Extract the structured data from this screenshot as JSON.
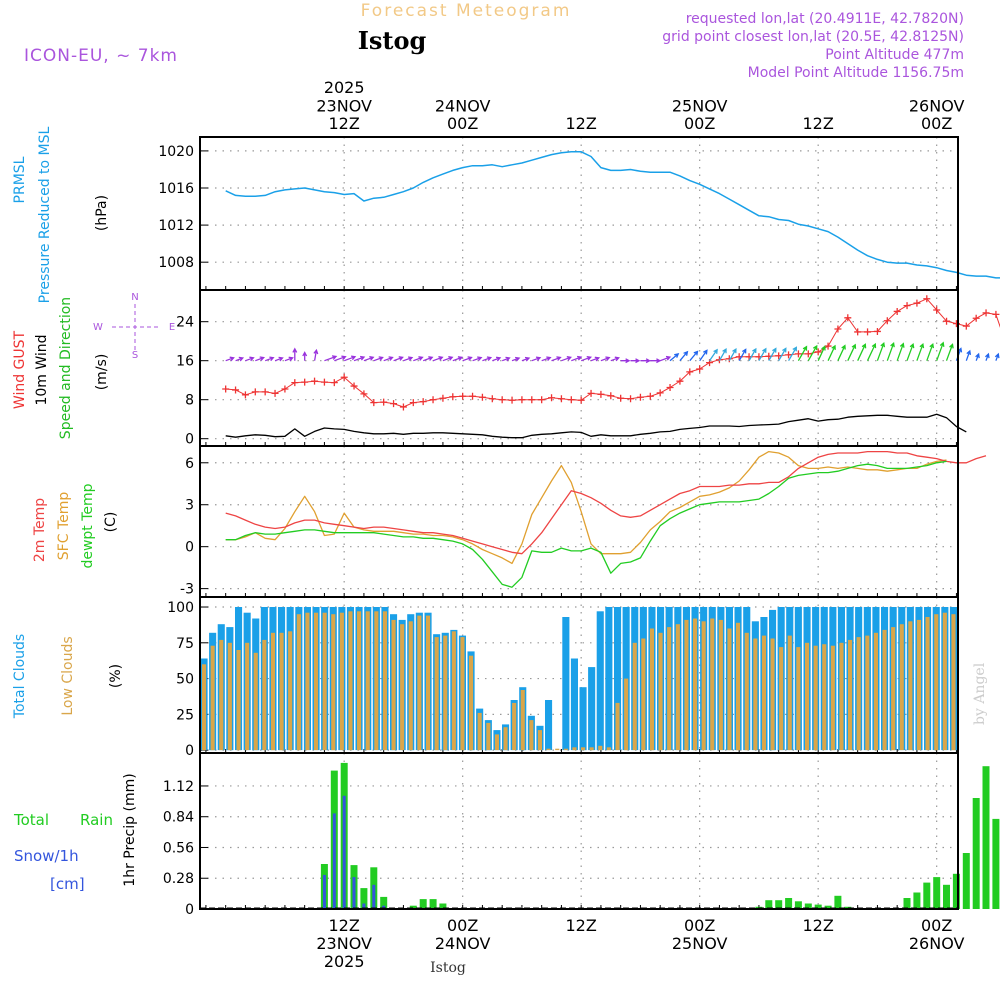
{
  "header": {
    "product": "Forecast Meteogram",
    "location": "Istog",
    "model": "ICON-EU, ~ 7km",
    "requested": "requested lon,lat (20.4911E, 42.7820N)",
    "gridpoint": "grid point closest lon,lat (20.5E, 42.8125N)",
    "altitude": "Point Altitude 477m",
    "model_altitude": "Model Point Altitude 1156.75m",
    "footer": "Istog",
    "watermark": "by Angel"
  },
  "colors": {
    "pressure": "#1aa0e8",
    "gust": "#ee3333",
    "wind": "#000000",
    "dir": "#22bb22",
    "temp2m": "#ee4444",
    "sfc": "#e0a030",
    "dewpt": "#22cc22",
    "cloudTotal": "#1aa0e8",
    "cloudLow": "#d9a64a",
    "rain": "#22cc22",
    "snow": "#3355dd",
    "purple": "#aa55dd",
    "gold": "#f2c987"
  },
  "time_axis": {
    "top_year": "2025",
    "ticks": [
      {
        "hour": 12,
        "lines": [
          "23NOV",
          "12Z"
        ],
        "bottom": [
          "12Z",
          "23NOV",
          "2025"
        ]
      },
      {
        "hour": 24,
        "lines": [
          "24NOV",
          "00Z"
        ],
        "bottom": [
          "00Z",
          "24NOV"
        ]
      },
      {
        "hour": 36,
        "lines": [
          "12Z"
        ],
        "bottom": [
          "12Z"
        ]
      },
      {
        "hour": 48,
        "lines": [
          "25NOV",
          "00Z"
        ],
        "bottom": [
          "00Z",
          "25NOV"
        ]
      },
      {
        "hour": 60,
        "lines": [
          "12Z"
        ],
        "bottom": [
          "12Z"
        ]
      },
      {
        "hour": 72,
        "lines": [
          "26NOV",
          "00Z"
        ],
        "bottom": [
          "00Z",
          "26NOV"
        ]
      }
    ]
  },
  "chart_data": [
    {
      "type": "line",
      "name": "pressure",
      "labels": {
        "l1": "PRMSL",
        "l2": "Pressure Reduced to MSL",
        "unit": "(hPa)"
      },
      "ylim": [
        1005,
        1021.5
      ],
      "yticks": [
        1008,
        1012,
        1016,
        1020
      ],
      "series": [
        {
          "name": "PRMSL",
          "values": [
            1015.7,
            1015.2,
            1015.1,
            1015.1,
            1015.2,
            1015.6,
            1015.8,
            1015.9,
            1016.0,
            1015.8,
            1015.6,
            1015.5,
            1015.3,
            1015.4,
            1014.6,
            1014.9,
            1015.0,
            1015.3,
            1015.6,
            1016.0,
            1016.6,
            1017.1,
            1017.5,
            1017.9,
            1018.2,
            1018.4,
            1018.4,
            1018.5,
            1018.3,
            1018.5,
            1018.7,
            1019.0,
            1019.3,
            1019.6,
            1019.8,
            1019.9,
            1019.9,
            1019.4,
            1018.2,
            1017.9,
            1017.9,
            1018.0,
            1017.8,
            1017.7,
            1017.7,
            1017.7,
            1017.3,
            1016.8,
            1016.4,
            1015.9,
            1015.4,
            1014.8,
            1014.2,
            1013.6,
            1013.0,
            1012.9,
            1012.6,
            1012.5,
            1012.1,
            1011.9,
            1011.6,
            1011.3,
            1010.7,
            1010.0,
            1009.3,
            1008.7,
            1008.3,
            1008.0,
            1007.9,
            1007.9,
            1007.7,
            1007.6,
            1007.4,
            1007.1,
            1006.9,
            1006.6,
            1006.5,
            1006.5,
            1006.3,
            1006.3,
            1006.5,
            1007.1
          ]
        }
      ]
    },
    {
      "type": "line",
      "name": "wind",
      "labels": {
        "l1": "Wind GUST",
        "l2": "10m Wind",
        "l3": "Speed and Direction",
        "unit": "(m/s)",
        "compass": {
          "n": "N",
          "s": "S",
          "w": "W",
          "e": "E"
        }
      },
      "ylim": [
        -1.5,
        30.5
      ],
      "yticks": [
        0,
        8,
        16,
        24
      ],
      "series": [
        {
          "name": "Wind GUST",
          "values": [
            10.2,
            10.0,
            9.0,
            9.6,
            9.6,
            9.3,
            10.2,
            11.5,
            11.6,
            11.8,
            11.6,
            11.5,
            12.6,
            10.8,
            9.2,
            7.4,
            7.5,
            7.2,
            6.5,
            7.4,
            7.6,
            8.0,
            8.3,
            8.6,
            8.7,
            8.7,
            8.5,
            8.2,
            8.0,
            7.9,
            8.0,
            8.0,
            8.0,
            8.4,
            8.2,
            8.0,
            7.9,
            9.3,
            9.1,
            8.8,
            8.3,
            8.2,
            8.5,
            8.7,
            9.4,
            10.5,
            11.8,
            13.7,
            14.3,
            15.6,
            16.2,
            16.4,
            16.8,
            16.8,
            16.8,
            16.9,
            17.0,
            17.2,
            17.4,
            17.4,
            17.8,
            19.0,
            22.5,
            24.8,
            21.9,
            21.9,
            22.0,
            24.2,
            26.1,
            27.3,
            27.8,
            28.7,
            26.4,
            24.1,
            23.6,
            23.1,
            24.7,
            25.8,
            25.5,
            19.6
          ]
        },
        {
          "name": "10m Wind",
          "values": [
            0.6,
            0.3,
            0.6,
            0.8,
            0.7,
            0.4,
            0.5,
            2.0,
            0.5,
            1.5,
            2.2,
            2.0,
            1.9,
            1.5,
            1.2,
            1.0,
            1.0,
            1.1,
            0.9,
            1.1,
            1.1,
            1.2,
            1.2,
            1.1,
            1.0,
            0.9,
            0.8,
            0.5,
            0.3,
            0.2,
            0.2,
            0.7,
            0.9,
            1.0,
            1.2,
            1.4,
            1.3,
            0.5,
            0.8,
            0.6,
            0.6,
            0.6,
            0.9,
            1.1,
            1.4,
            1.5,
            1.9,
            2.1,
            2.3,
            2.6,
            2.6,
            2.6,
            2.5,
            2.7,
            2.8,
            2.9,
            3.0,
            3.5,
            3.8,
            4.1,
            3.6,
            3.9,
            4.0,
            4.4,
            4.6,
            4.7,
            4.8,
            4.8,
            4.6,
            4.4,
            4.4,
            4.4,
            5.0,
            4.3,
            2.5,
            1.4
          ]
        },
        {
          "name": "Direction",
          "values": [
            250,
            250,
            250,
            250,
            250,
            250,
            250,
            180,
            180,
            190,
            250,
            250,
            250,
            250,
            250,
            250,
            250,
            250,
            250,
            250,
            250,
            250,
            250,
            250,
            250,
            250,
            250,
            250,
            250,
            250,
            250,
            250,
            250,
            250,
            250,
            250,
            250,
            250,
            250,
            250,
            270,
            270,
            270,
            270,
            250,
            230,
            220,
            220,
            215,
            215,
            210,
            210,
            210,
            210,
            210,
            210,
            210,
            210,
            210,
            210,
            205,
            205,
            205,
            205,
            205,
            205,
            200,
            200,
            200,
            200,
            200,
            200,
            200,
            200,
            200,
            200,
            200,
            200,
            200,
            200
          ]
        }
      ]
    },
    {
      "type": "line",
      "name": "temperature",
      "labels": {
        "l1": "2m Temp",
        "l2": "SFC Temp",
        "l3": "dewpt Temp",
        "unit": "(C)"
      },
      "ylim": [
        -3.6,
        7.2
      ],
      "yticks": [
        -3,
        0,
        3,
        6
      ],
      "series": [
        {
          "name": "2m Temp",
          "values": [
            2.4,
            2.2,
            1.9,
            1.6,
            1.4,
            1.3,
            1.4,
            1.7,
            1.9,
            1.9,
            1.7,
            1.6,
            1.5,
            1.4,
            1.3,
            1.4,
            1.4,
            1.3,
            1.2,
            1.1,
            1.0,
            1.0,
            0.9,
            0.8,
            0.6,
            0.4,
            0.2,
            0.0,
            -0.2,
            -0.4,
            -0.5,
            0.2,
            1.0,
            2.0,
            3.0,
            4.0,
            3.8,
            3.5,
            3.1,
            2.6,
            2.2,
            2.1,
            2.2,
            2.6,
            3.0,
            3.4,
            3.8,
            4.0,
            4.3,
            4.3,
            4.3,
            4.4,
            4.4,
            4.5,
            4.5,
            4.6,
            4.6,
            5.0,
            5.6,
            6.0,
            6.4,
            6.6,
            6.7,
            6.7,
            6.7,
            6.8,
            6.8,
            6.8,
            6.7,
            6.7,
            6.5,
            6.4,
            6.3,
            6.1,
            6.0,
            6.0,
            6.3,
            6.5
          ]
        },
        {
          "name": "SFC Temp",
          "values": [
            0.5,
            0.5,
            0.7,
            1.0,
            0.6,
            0.5,
            1.3,
            2.5,
            3.6,
            2.5,
            0.8,
            0.9,
            2.4,
            1.4,
            1.2,
            1.1,
            1.1,
            1.1,
            1.0,
            0.9,
            0.9,
            0.8,
            0.8,
            0.7,
            0.5,
            0.2,
            -0.2,
            -0.5,
            -0.8,
            -1.2,
            0.2,
            2.3,
            3.5,
            4.7,
            5.8,
            4.6,
            2.5,
            0.2,
            -0.5,
            -0.5,
            -0.5,
            -0.4,
            0.3,
            1.2,
            1.8,
            2.5,
            2.8,
            3.2,
            3.6,
            3.7,
            3.9,
            4.2,
            4.7,
            5.5,
            6.4,
            6.8,
            6.7,
            6.4,
            5.8,
            5.6,
            5.6,
            5.7,
            5.6,
            5.7,
            5.6,
            5.5,
            5.5,
            5.4,
            5.5,
            5.6,
            5.6,
            5.9,
            6.1,
            6.2
          ]
        },
        {
          "name": "dewpt Temp",
          "values": [
            0.5,
            0.5,
            0.8,
            1.0,
            0.9,
            0.9,
            1.0,
            1.1,
            1.2,
            1.2,
            1.1,
            1.0,
            1.0,
            1.0,
            1.0,
            1.0,
            0.9,
            0.8,
            0.7,
            0.7,
            0.6,
            0.6,
            0.5,
            0.4,
            0.2,
            -0.2,
            -0.9,
            -1.8,
            -2.7,
            -2.9,
            -2.2,
            -0.3,
            -0.4,
            -0.4,
            -0.1,
            -0.3,
            -0.3,
            -0.1,
            -0.4,
            -1.9,
            -1.2,
            -1.1,
            -0.8,
            0.4,
            1.5,
            2.0,
            2.4,
            2.7,
            3.0,
            3.1,
            3.2,
            3.2,
            3.2,
            3.3,
            3.4,
            3.8,
            4.3,
            4.9,
            5.1,
            5.2,
            5.3,
            5.3,
            5.4,
            5.6,
            5.8,
            5.9,
            5.8,
            5.6,
            5.6,
            5.6,
            5.7,
            5.8,
            6.0,
            6.1
          ]
        }
      ]
    },
    {
      "type": "bar",
      "name": "clouds",
      "labels": {
        "l1": "Total Clouds",
        "l2": "Low Clouds",
        "unit": "(%)"
      },
      "ylim": [
        -2,
        107
      ],
      "yticks": [
        0,
        25,
        50,
        75,
        100
      ],
      "series": [
        {
          "name": "Total Clouds",
          "values": [
            64,
            82,
            88,
            86,
            100,
            96,
            92,
            100,
            100,
            100,
            100,
            100,
            100,
            100,
            100,
            100,
            100,
            100,
            100,
            100,
            100,
            100,
            95,
            91,
            95,
            96,
            96,
            81,
            82,
            84,
            80,
            69,
            29,
            21,
            14,
            18,
            35,
            44,
            24,
            17,
            35,
            0,
            93,
            64,
            44,
            58,
            97,
            100,
            100,
            100,
            100,
            100,
            100,
            100,
            100,
            100,
            100,
            100,
            100,
            100,
            100,
            100,
            100,
            100,
            90,
            93,
            98,
            100,
            100,
            100,
            100,
            100,
            100,
            100,
            100,
            100,
            100,
            100,
            100,
            100,
            100,
            100,
            100,
            100,
            100,
            100,
            100,
            100
          ]
        },
        {
          "name": "Low Clouds",
          "values": [
            60,
            73,
            77,
            75,
            70,
            75,
            68,
            77,
            82,
            82,
            83,
            95,
            96,
            96,
            96,
            95,
            96,
            97,
            97,
            97,
            97,
            97,
            91,
            88,
            90,
            94,
            94,
            79,
            80,
            83,
            79,
            66,
            26,
            19,
            11,
            16,
            33,
            42,
            21,
            14,
            1,
            1,
            1,
            2,
            2,
            2,
            3,
            2,
            33,
            50,
            75,
            78,
            85,
            82,
            86,
            88,
            91,
            92,
            90,
            92,
            91,
            85,
            89,
            82,
            78,
            80,
            78,
            72,
            80,
            72,
            75,
            73,
            74,
            73,
            75,
            77,
            79,
            80,
            82,
            84,
            86,
            88,
            90,
            91,
            93,
            95,
            96,
            95
          ]
        }
      ]
    },
    {
      "type": "bar",
      "name": "precip",
      "labels": {
        "total": "Total",
        "rain": "Rain",
        "snow": "Snow/1h",
        "snow_unit": "[cm]",
        "unit": "1hr Precip (mm)"
      },
      "ylim": [
        0,
        1.42
      ],
      "yticks": [
        0,
        0.28,
        0.56,
        0.84,
        1.12
      ],
      "series": [
        {
          "name": "Total",
          "values": [
            0,
            0,
            0,
            0,
            0,
            0,
            0,
            0,
            0,
            0,
            0.41,
            1.26,
            1.33,
            0.4,
            0.19,
            0.38,
            0.11,
            0,
            0,
            0.03,
            0.09,
            0.09,
            0.05,
            0,
            0,
            0,
            0,
            0,
            0,
            0,
            0,
            0,
            0,
            0,
            0,
            0,
            0,
            0,
            0,
            0,
            0,
            0,
            0,
            0,
            0,
            0,
            0,
            0,
            0,
            0,
            0,
            0,
            0,
            0,
            0.02,
            0.08,
            0.08,
            0.1,
            0.07,
            0.05,
            0.04,
            0.03,
            0.12,
            0.02,
            0,
            0,
            0,
            0,
            0,
            0.1,
            0.15,
            0.24,
            0.29,
            0.22,
            0.32,
            0.51,
            1.01,
            1.3,
            0.82
          ]
        },
        {
          "name": "Snow/1h",
          "values": [
            0,
            0,
            0,
            0,
            0,
            0,
            0,
            0,
            0,
            0,
            0.31,
            0.87,
            1.03,
            0.29,
            0.05,
            0.22,
            0.03,
            0,
            0,
            0,
            0,
            0,
            0,
            0,
            0,
            0,
            0,
            0,
            0,
            0,
            0,
            0,
            0,
            0,
            0,
            0,
            0,
            0,
            0,
            0,
            0,
            0,
            0,
            0,
            0,
            0,
            0,
            0,
            0,
            0,
            0,
            0,
            0,
            0,
            0,
            0,
            0,
            0,
            0,
            0,
            0,
            0,
            0,
            0,
            0,
            0,
            0,
            0,
            0,
            0,
            0,
            0,
            0,
            0,
            0,
            0,
            0,
            0,
            0
          ]
        }
      ]
    }
  ]
}
